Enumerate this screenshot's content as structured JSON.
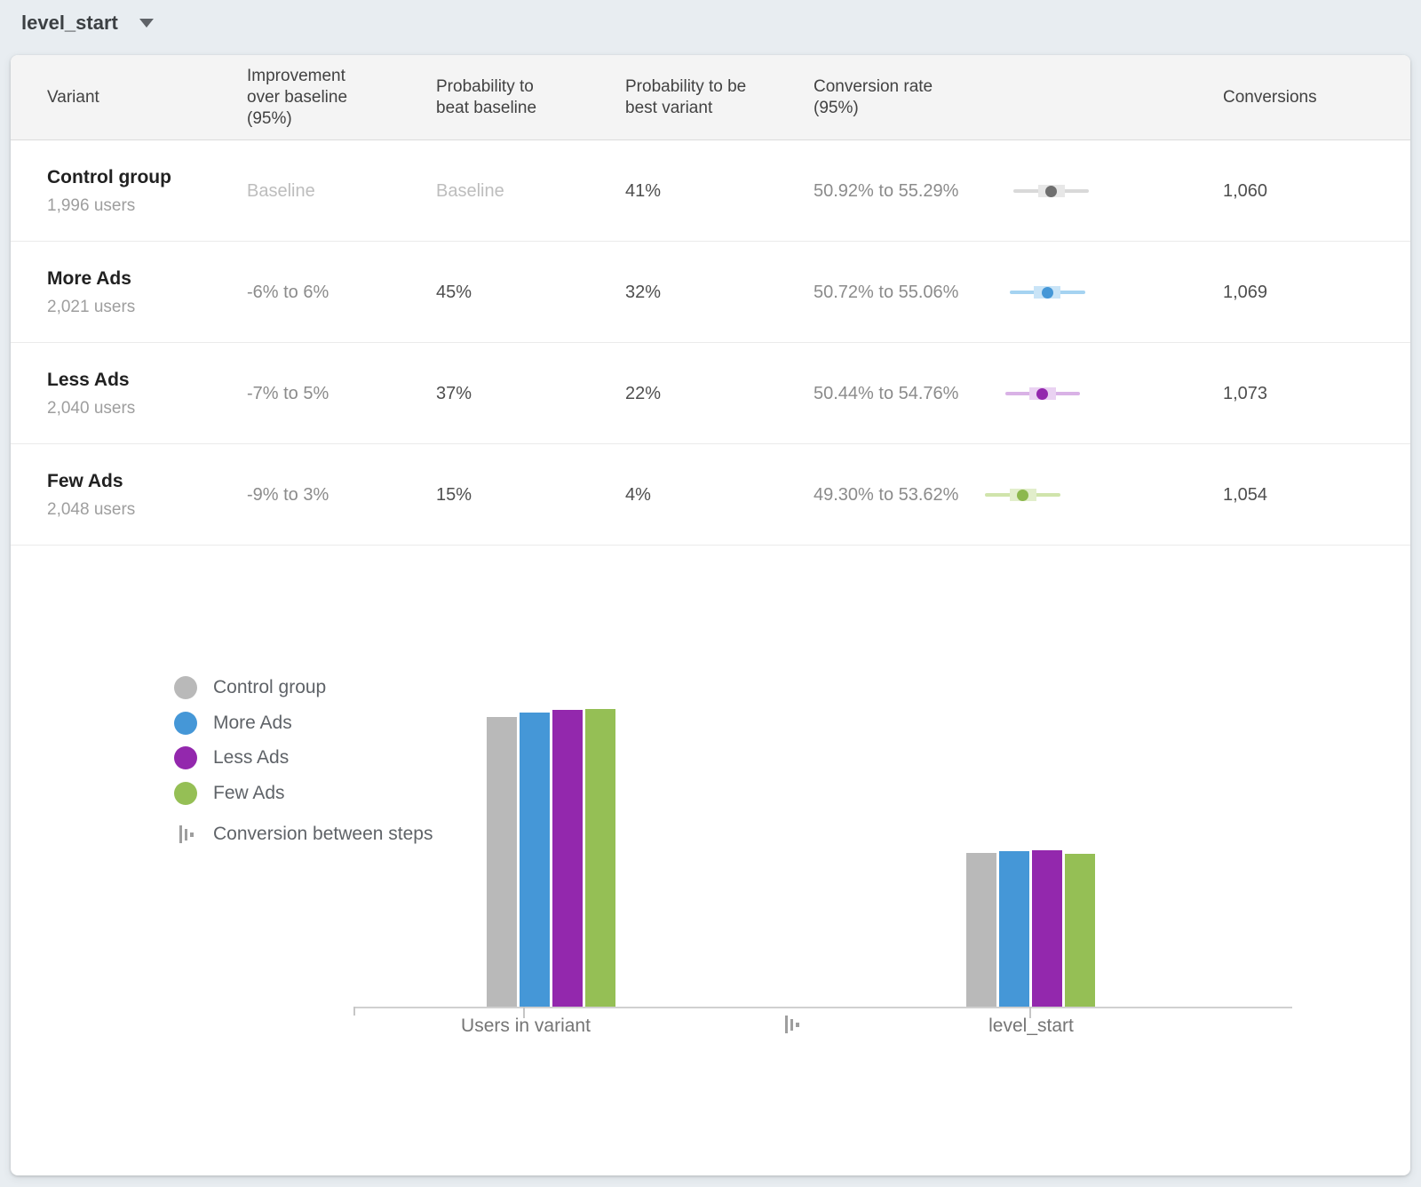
{
  "app": {
    "background": "#e8edf1",
    "card_background": "#ffffff"
  },
  "goal_selector": {
    "label": "level_start"
  },
  "table": {
    "headers": [
      "Variant",
      "Improvement over baseline (95%)",
      "Probability to beat baseline",
      "Probability to be best variant",
      "Conversion rate (95%)",
      "Conversions"
    ],
    "rows": [
      {
        "variant": "Control group",
        "users": "1,996 users",
        "improvement": "Baseline",
        "improvement_is_baseline": true,
        "prob_beat_baseline": "Baseline",
        "prob_beat_is_baseline": true,
        "prob_best_variant": "41%",
        "conversion_rate": "50.92% to 55.29%",
        "ci_low": 50.92,
        "ci_high": 55.29,
        "conversions": "1,060",
        "color_key": "control"
      },
      {
        "variant": "More Ads",
        "users": "2,021 users",
        "improvement": "-6% to 6%",
        "improvement_is_baseline": false,
        "prob_beat_baseline": "45%",
        "prob_beat_is_baseline": false,
        "prob_best_variant": "32%",
        "conversion_rate": "50.72% to 55.06%",
        "ci_low": 50.72,
        "ci_high": 55.06,
        "conversions": "1,069",
        "color_key": "more_ads"
      },
      {
        "variant": "Less Ads",
        "users": "2,040 users",
        "improvement": "-7% to 5%",
        "improvement_is_baseline": false,
        "prob_beat_baseline": "37%",
        "prob_beat_is_baseline": false,
        "prob_best_variant": "22%",
        "conversion_rate": "50.44% to 54.76%",
        "ci_low": 50.44,
        "ci_high": 54.76,
        "conversions": "1,073",
        "color_key": "less_ads"
      },
      {
        "variant": "Few Ads",
        "users": "2,048 users",
        "improvement": "-9% to 3%",
        "improvement_is_baseline": false,
        "prob_beat_baseline": "15%",
        "prob_beat_is_baseline": false,
        "prob_best_variant": "4%",
        "conversion_rate": "49.30% to 53.62%",
        "ci_low": 49.3,
        "ci_high": 53.62,
        "conversions": "1,054",
        "color_key": "few_ads"
      }
    ]
  },
  "chart_data": {
    "type": "bar",
    "categories": [
      "Users in variant",
      "level_start"
    ],
    "series": [
      {
        "name": "Control group",
        "color_key": "control",
        "values": [
          1996,
          1060
        ]
      },
      {
        "name": "More Ads",
        "color_key": "more_ads",
        "values": [
          2021,
          1069
        ]
      },
      {
        "name": "Less Ads",
        "color_key": "less_ads",
        "values": [
          2040,
          1073
        ]
      },
      {
        "name": "Few Ads",
        "color_key": "few_ads",
        "values": [
          2048,
          1054
        ]
      }
    ],
    "ylim": [
      0,
      2048
    ],
    "grid": false,
    "legend_position": "left",
    "conversion_between_steps_label": "Conversion between steps"
  },
  "colors": {
    "control": {
      "bar": "#b9b9b9",
      "dot": "#6f6f6f",
      "whisker": "#d9d9d9",
      "box": "#e7e7e7"
    },
    "more_ads": {
      "bar": "#4597d7",
      "dot": "#4597d7",
      "whisker": "#a5d3f1",
      "box": "#c9e4f7"
    },
    "less_ads": {
      "bar": "#9328ad",
      "dot": "#9328ad",
      "whisker": "#d9b2e6",
      "box": "#ead2f2"
    },
    "few_ads": {
      "bar": "#95bf55",
      "dot": "#8db84e",
      "whisker": "#d0e4ac",
      "box": "#e2eecb"
    }
  }
}
